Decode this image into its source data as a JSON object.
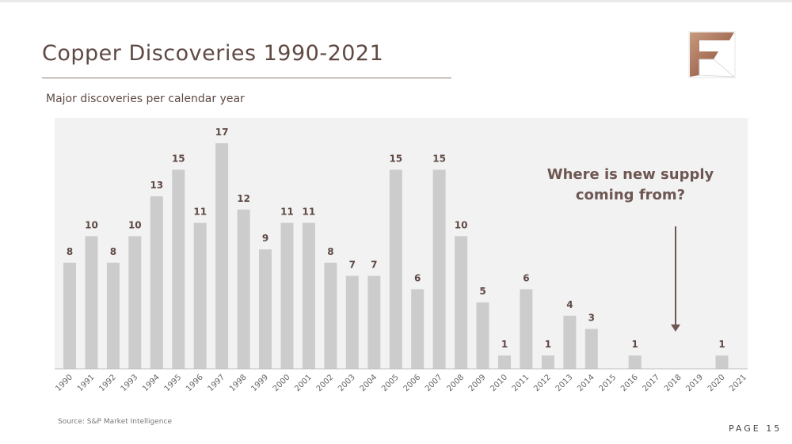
{
  "slide": {
    "title": "Copper Discoveries 1990-2021",
    "subtitle": "Major discoveries per calendar year",
    "callout": "Where is new supply coming from?",
    "source": "Source: S&P Market Intelligence",
    "page_label": "PAGE 15"
  },
  "colors": {
    "bar": "#cccccc",
    "plot_bg": "#f2f2f2",
    "label": "#5f4a44",
    "accent_copper": "#a8725a"
  },
  "chart_data": {
    "type": "bar",
    "title": "Major discoveries per calendar year",
    "xlabel": "",
    "ylabel": "",
    "categories": [
      "1990",
      "1991",
      "1992",
      "1993",
      "1994",
      "1995",
      "1996",
      "1997",
      "1998",
      "1999",
      "2000",
      "2001",
      "2002",
      "2003",
      "2004",
      "2005",
      "2006",
      "2007",
      "2008",
      "2009",
      "2010",
      "2011",
      "2012",
      "2013",
      "2014",
      "2015",
      "2016",
      "2017",
      "2018",
      "2019",
      "2020",
      "2021"
    ],
    "values": [
      8,
      10,
      8,
      10,
      13,
      15,
      11,
      17,
      12,
      9,
      11,
      11,
      8,
      7,
      7,
      15,
      6,
      15,
      10,
      5,
      1,
      6,
      1,
      4,
      3,
      0,
      1,
      0,
      0,
      0,
      1,
      0
    ],
    "data_labels": [
      "8",
      "10",
      "8",
      "10",
      "13",
      "15",
      "11",
      "17",
      "12",
      "9",
      "11",
      "11",
      "8",
      "7",
      "7",
      "15",
      "6",
      "15",
      "10",
      "5",
      "1",
      "6",
      "1",
      "4",
      "3",
      "",
      "1",
      "",
      "",
      "",
      "1",
      ""
    ],
    "ylim": [
      0,
      17
    ],
    "grid": false,
    "legend": "none",
    "annotation": {
      "text": "Where is new supply coming from?",
      "arrow_points_to": "2018"
    }
  }
}
